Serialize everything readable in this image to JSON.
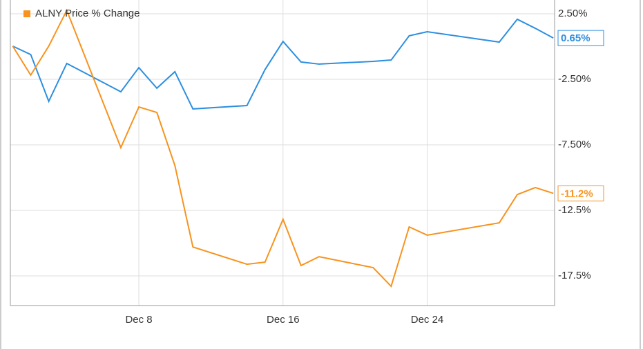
{
  "chart_data": {
    "type": "line",
    "x": [
      1,
      2,
      3,
      4,
      7,
      8,
      9,
      10,
      11,
      14,
      15,
      16,
      17,
      18,
      21,
      22,
      23,
      24,
      28,
      29,
      30,
      31
    ],
    "xlim": [
      0.87,
      31.07
    ],
    "xticks": [
      {
        "value": 8,
        "label": "Dec 8"
      },
      {
        "value": 16,
        "label": "Dec 16"
      },
      {
        "value": 24,
        "label": "Dec 24"
      }
    ],
    "ylim": [
      -19.76,
      3.55
    ],
    "yticks": [
      {
        "value": 2.5,
        "label": "2.50%"
      },
      {
        "value": -2.5,
        "label": "-2.50%"
      },
      {
        "value": -7.5,
        "label": "-7.50%"
      },
      {
        "value": -12.5,
        "label": "-12.5%"
      },
      {
        "value": -17.5,
        "label": "-17.5%"
      }
    ],
    "grid": true,
    "series": [
      {
        "color": "#2d8fe0",
        "values": [
          0.03,
          -0.61,
          -4.18,
          -1.29,
          -3.45,
          -1.61,
          -3.18,
          -1.92,
          -4.76,
          -4.5,
          -1.76,
          0.39,
          -1.18,
          -1.34,
          -1.13,
          -1.03,
          0.82,
          1.13,
          0.34,
          2.08,
          1.39,
          0.65
        ],
        "value_labels": [
          null,
          null,
          null,
          null,
          null,
          null,
          null,
          null,
          null,
          null,
          null,
          null,
          null,
          null,
          null,
          null,
          null,
          null,
          null,
          null,
          null,
          "0.65%"
        ]
      },
      {
        "name": "ALNY Price % Change",
        "color": "#f7931e",
        "values": [
          0.03,
          -2.18,
          0.03,
          2.76,
          -7.71,
          -4.61,
          -5.03,
          -9.08,
          -15.29,
          -16.61,
          -16.45,
          -13.18,
          -16.71,
          -16.03,
          -16.87,
          -18.29,
          -13.76,
          -14.39,
          -13.45,
          -11.29,
          -10.76,
          -11.2
        ],
        "value_labels": [
          null,
          null,
          null,
          null,
          null,
          null,
          null,
          null,
          null,
          null,
          null,
          null,
          null,
          null,
          null,
          null,
          null,
          null,
          null,
          null,
          null,
          "-11.2%"
        ]
      }
    ]
  }
}
